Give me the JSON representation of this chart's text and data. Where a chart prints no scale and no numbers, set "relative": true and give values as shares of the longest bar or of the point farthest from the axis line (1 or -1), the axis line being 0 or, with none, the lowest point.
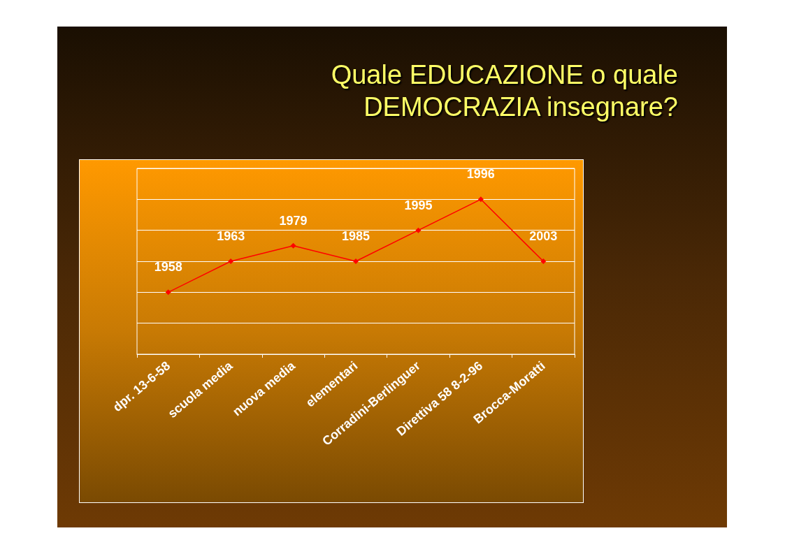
{
  "chart_data": {
    "type": "line",
    "title": "Quale EDUCAZIONE o quale DEMOCRAZIA insegnare?",
    "categories": [
      "dpr. 13-6-58",
      "scuola media",
      "nuova media",
      "elementari",
      "Corradini-Berlinguer",
      "Direttiva 58 8-2-96",
      "Brocca-Moratti"
    ],
    "series": [
      {
        "color": "#ff0000",
        "values": [
          0.4,
          0.6,
          0.7,
          0.6,
          0.8,
          1,
          0.6
        ]
      }
    ],
    "annotations": [
      {
        "text": "1958",
        "x": "dpr. 13-6-58",
        "y": 0.4
      },
      {
        "text": "1963",
        "x": "scuola media",
        "y": 0.6
      },
      {
        "text": "1979",
        "x": "nuova media",
        "y": 0.7
      },
      {
        "text": "1985",
        "x": "elementari",
        "y": 0.6
      },
      {
        "text": "1995",
        "x": "Corradini-Berlinguer",
        "y": 0.8
      },
      {
        "text": "1996",
        "x": "Direttiva 58 8-2-96",
        "y": 1
      },
      {
        "text": "2003",
        "x": "Brocca-Moratti",
        "y": 0.6
      }
    ],
    "relative": true,
    "grid": "y",
    "marker": "diamond",
    "line_style": "solid"
  }
}
